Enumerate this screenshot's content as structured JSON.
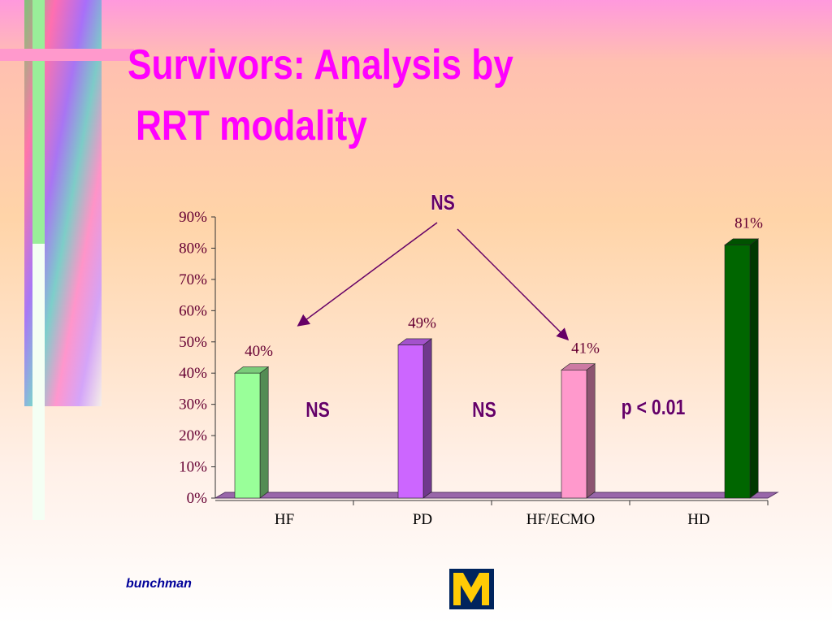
{
  "chart_data": {
    "type": "bar",
    "title": [
      "Survivors:  Analysis by",
      "RRT modality"
    ],
    "categories": [
      "HF",
      "PD",
      "HF/ECMO",
      "HD"
    ],
    "values": [
      40,
      49,
      41,
      81
    ],
    "value_labels": [
      "40%",
      "49%",
      "41%",
      "81%"
    ],
    "colors": [
      "#99ff99",
      "#cc66ff",
      "#ff99cc",
      "#006600"
    ],
    "ylim": [
      0,
      90
    ],
    "yticks": [
      {
        "value": 0,
        "label": "0%"
      },
      {
        "value": 10,
        "label": "10%"
      },
      {
        "value": 20,
        "label": "20%"
      },
      {
        "value": 30,
        "label": "30%"
      },
      {
        "value": 40,
        "label": "40%"
      },
      {
        "value": 50,
        "label": "50%"
      },
      {
        "value": 60,
        "label": "60%"
      },
      {
        "value": 70,
        "label": "70%"
      },
      {
        "value": 80,
        "label": "80%"
      },
      {
        "value": 90,
        "label": "90%"
      }
    ],
    "annotations": [
      "NS",
      "NS",
      "NS",
      "p < 0.01"
    ]
  },
  "footer": "bunchman"
}
